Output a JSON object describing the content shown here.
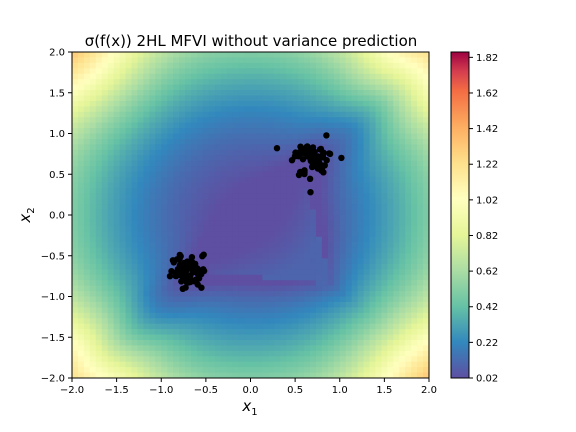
{
  "chart_data": {
    "type": "heatmap",
    "title": "σ(f(x)) 2HL MFVI without variance prediction",
    "xlabel": "x1",
    "ylabel": "x2",
    "xlim": [
      -2.0,
      2.0
    ],
    "ylim": [
      -2.0,
      2.0
    ],
    "x_ticks": [
      "−2.0",
      "−1.5",
      "−1.0",
      "−0.5",
      "0.0",
      "0.5",
      "1.0",
      "1.5",
      "2.0"
    ],
    "y_ticks": [
      "−2.0",
      "−1.5",
      "−1.0",
      "−0.5",
      "0.0",
      "0.5",
      "1.0",
      "1.5",
      "2.0"
    ],
    "colorbar": {
      "colormap": "Spectral_r",
      "range": [
        0.02,
        1.85
      ],
      "ticks": [
        "0.02",
        "0.22",
        "0.42",
        "0.62",
        "0.82",
        "1.02",
        "1.22",
        "1.42",
        "1.62",
        "1.82"
      ]
    },
    "clusters": [
      {
        "center": [
          -0.7,
          -0.7
        ],
        "spread": 0.12,
        "color": "#000000"
      },
      {
        "center": [
          0.7,
          0.7
        ],
        "spread": 0.12,
        "color": "#000000"
      }
    ],
    "field_description": "low values inside triangle near (-0.5,-0.7),(0.6,0.5),(0.9,-0.9); high values at corners (-2,2) and (-2,-2), (2,2), (2,-2)"
  }
}
